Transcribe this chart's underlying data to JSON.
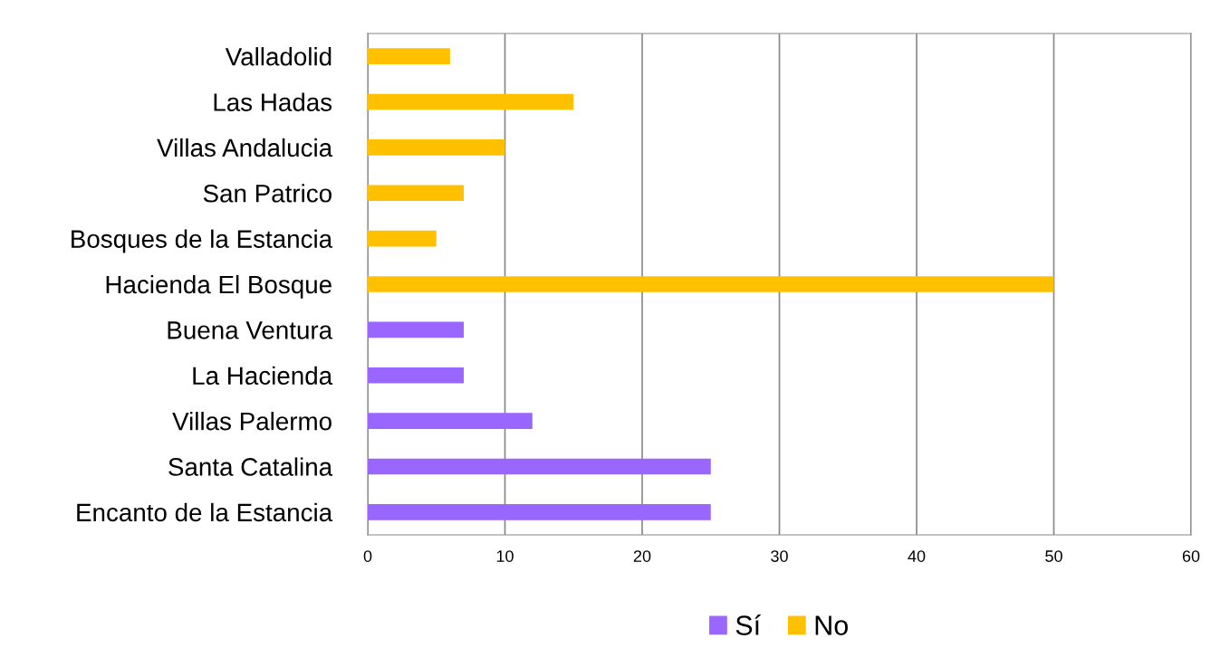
{
  "chart_data": {
    "type": "bar",
    "orientation": "horizontal",
    "stacked": true,
    "categories": [
      "Valladolid",
      "Las Hadas",
      "Villas Andalucia",
      "San Patrico",
      "Bosques de la Estancia",
      "Hacienda El Bosque",
      "Buena Ventura",
      "La Hacienda",
      "Villas Palermo",
      "Santa Catalina",
      "Encanto de la Estancia"
    ],
    "series": [
      {
        "name": "Sí",
        "color": "#9966ff",
        "values": [
          null,
          null,
          null,
          null,
          null,
          null,
          7,
          7,
          12,
          25,
          25
        ]
      },
      {
        "name": "No",
        "color": "#ffc000",
        "values": [
          6,
          15,
          10,
          7,
          5,
          50,
          null,
          null,
          null,
          null,
          null
        ]
      }
    ],
    "xlim": [
      0,
      60
    ],
    "xticks": [
      0,
      10,
      20,
      30,
      40,
      50,
      60
    ],
    "grid": "x",
    "legend": "bottom"
  }
}
